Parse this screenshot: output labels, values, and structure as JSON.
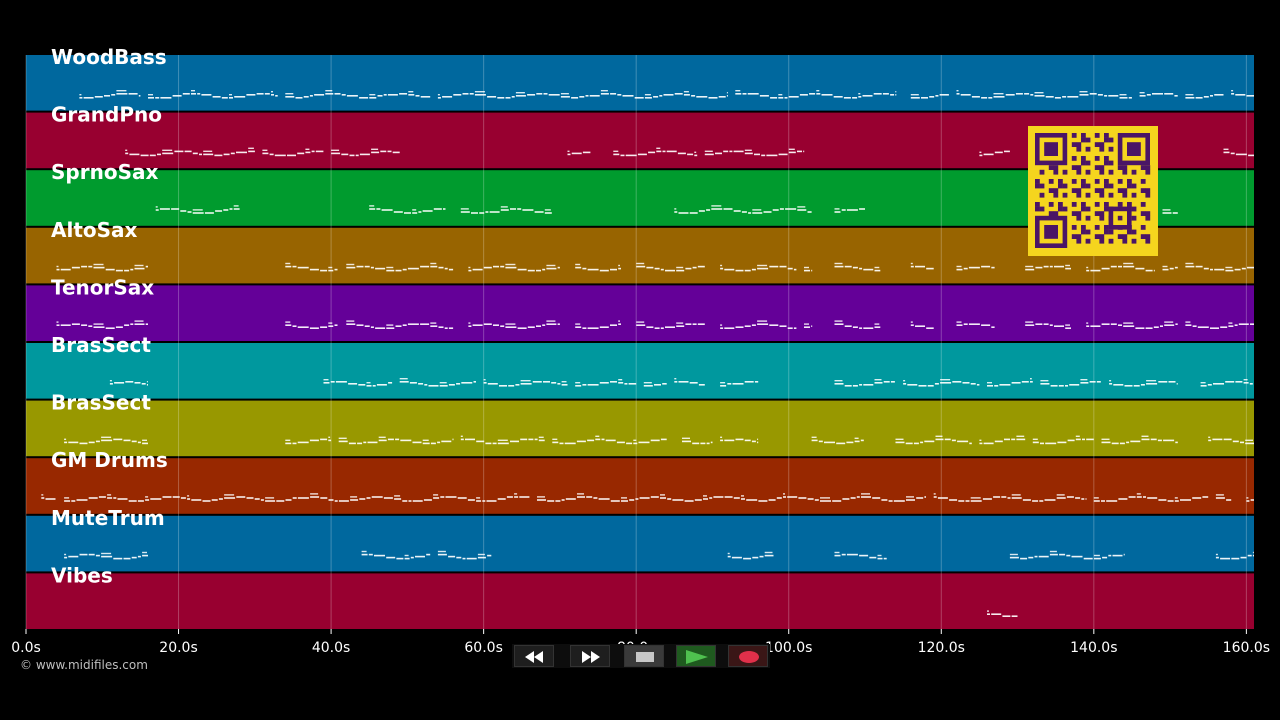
{
  "copyright": "© www.midifiles.com",
  "timeline": {
    "max_seconds": 161,
    "ticks": [
      {
        "t": 0,
        "label": "0.0s"
      },
      {
        "t": 20,
        "label": "20.0s"
      },
      {
        "t": 40,
        "label": "40.0s"
      },
      {
        "t": 60,
        "label": "60.0s"
      },
      {
        "t": 80,
        "label": "80.0s"
      },
      {
        "t": 100,
        "label": "100.0s"
      },
      {
        "t": 120,
        "label": "120.0s"
      },
      {
        "t": 140,
        "label": "140.0s"
      },
      {
        "t": 160,
        "label": "160.0s"
      }
    ]
  },
  "tracks": [
    {
      "name": "WoodBass",
      "color": "#00689e",
      "segments": [
        [
          7,
          15
        ],
        [
          16,
          33
        ],
        [
          34,
          53
        ],
        [
          54,
          92
        ],
        [
          93,
          114
        ],
        [
          116,
          121
        ],
        [
          122,
          145
        ],
        [
          146,
          151
        ],
        [
          152,
          157
        ],
        [
          158,
          161
        ]
      ]
    },
    {
      "name": "GrandPno",
      "color": "#980030",
      "segments": [
        [
          13,
          30
        ],
        [
          31,
          39
        ],
        [
          40,
          49
        ],
        [
          71,
          74
        ],
        [
          77,
          88
        ],
        [
          89,
          102
        ],
        [
          125,
          129
        ],
        [
          157,
          161
        ]
      ]
    },
    {
      "name": "SprnoSax",
      "color": "#009b2e",
      "segments": [
        [
          17,
          28
        ],
        [
          45,
          55
        ],
        [
          57,
          69
        ],
        [
          85,
          103
        ],
        [
          106,
          110
        ],
        [
          149,
          151
        ]
      ]
    },
    {
      "name": "AltoSax",
      "color": "#986400",
      "segments": [
        [
          4,
          16
        ],
        [
          34,
          41
        ],
        [
          42,
          56
        ],
        [
          58,
          70
        ],
        [
          72,
          78
        ],
        [
          80,
          89
        ],
        [
          91,
          101
        ],
        [
          102,
          103
        ],
        [
          106,
          112
        ],
        [
          116,
          119
        ],
        [
          122,
          127
        ],
        [
          131,
          137
        ],
        [
          139,
          148
        ],
        [
          149,
          151
        ],
        [
          152,
          161
        ]
      ]
    },
    {
      "name": "TenorSax",
      "color": "#640098",
      "segments": [
        [
          4,
          16
        ],
        [
          34,
          41
        ],
        [
          42,
          56
        ],
        [
          58,
          70
        ],
        [
          72,
          78
        ],
        [
          80,
          89
        ],
        [
          91,
          101
        ],
        [
          102,
          103
        ],
        [
          106,
          112
        ],
        [
          116,
          119
        ],
        [
          122,
          127
        ],
        [
          131,
          137
        ],
        [
          139,
          151
        ],
        [
          152,
          161
        ]
      ]
    },
    {
      "name": "BrasSect",
      "color": "#00989e",
      "segments": [
        [
          11,
          16
        ],
        [
          39,
          48
        ],
        [
          49,
          59
        ],
        [
          60,
          71
        ],
        [
          72,
          80
        ],
        [
          81,
          84
        ],
        [
          85,
          89
        ],
        [
          91,
          96
        ],
        [
          106,
          114
        ],
        [
          115,
          125
        ],
        [
          126,
          132
        ],
        [
          133,
          141
        ],
        [
          142,
          151
        ],
        [
          154,
          161
        ]
      ]
    },
    {
      "name": "BrasSect",
      "color": "#989800",
      "segments": [
        [
          5,
          16
        ],
        [
          34,
          40
        ],
        [
          41,
          56
        ],
        [
          57,
          68
        ],
        [
          69,
          84
        ],
        [
          86,
          90
        ],
        [
          91,
          96
        ],
        [
          103,
          110
        ],
        [
          114,
          124
        ],
        [
          125,
          131
        ],
        [
          132,
          140
        ],
        [
          141,
          151
        ],
        [
          155,
          161
        ]
      ]
    },
    {
      "name": "GM Drums",
      "color": "#982800",
      "segments": [
        [
          2,
          4
        ],
        [
          5,
          66
        ],
        [
          67,
          118
        ],
        [
          119,
          139
        ],
        [
          140,
          155
        ],
        [
          156,
          158
        ],
        [
          160,
          161
        ]
      ]
    },
    {
      "name": "MuteTrum",
      "color": "#00689e",
      "segments": [
        [
          5,
          16
        ],
        [
          44,
          53
        ],
        [
          54,
          61
        ],
        [
          92,
          98
        ],
        [
          106,
          113
        ],
        [
          129,
          144
        ],
        [
          156,
          161
        ]
      ]
    },
    {
      "name": "Vibes",
      "color": "#980030",
      "segments": [
        [
          126,
          130
        ]
      ]
    }
  ],
  "transport": {
    "buttons": [
      {
        "name": "rewind-button",
        "icon": "rewind-icon",
        "bg": "#1e1e1e"
      },
      {
        "name": "fast-forward-button",
        "icon": "fast-forward-icon",
        "bg": "#1e1e1e"
      },
      {
        "name": "stop-button",
        "icon": "stop-icon",
        "bg": "#3a3a3a"
      },
      {
        "name": "play-button",
        "icon": "play-icon",
        "bg": "#1f5a1f"
      },
      {
        "name": "record-button",
        "icon": "record-icon",
        "bg": "#3a1616"
      }
    ]
  },
  "qr_icon": "qr-code-icon"
}
